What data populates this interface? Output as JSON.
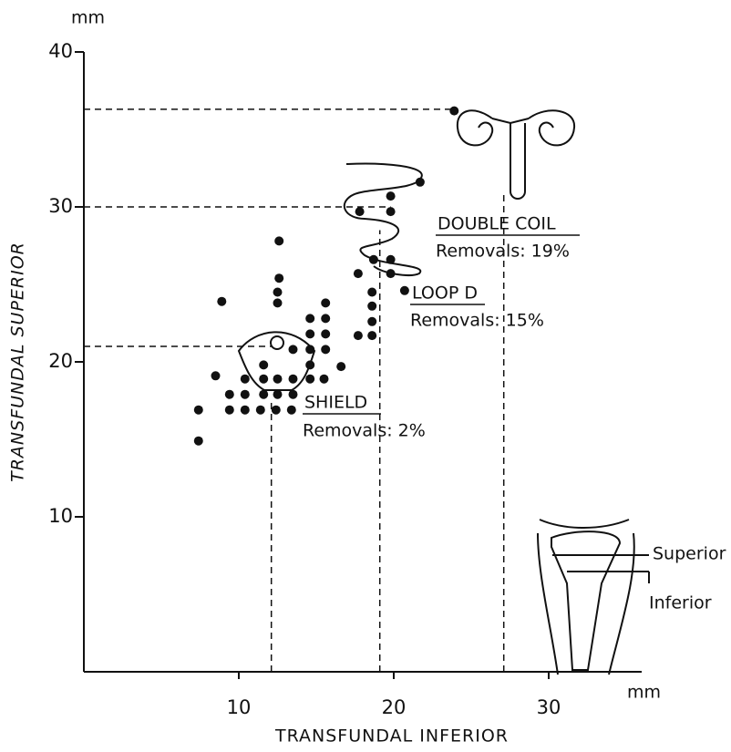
{
  "chart_data": {
    "type": "scatter",
    "x_label": "TRANSFUNDAL INFERIOR",
    "y_label": "TRANSFUNDAL SUPERIOR",
    "x_unit": "mm",
    "y_unit": "mm",
    "xlim": [
      0,
      36
    ],
    "ylim": [
      0,
      40
    ],
    "xticks": [
      10,
      20,
      30
    ],
    "yticks": [
      10,
      20,
      30,
      40
    ],
    "color": "#111111",
    "x": [
      23.9,
      21.7,
      19.8,
      17.8,
      19.8,
      17.7,
      18.7,
      19.8,
      19.8,
      18.6,
      20.7,
      18.6,
      18.6,
      17.7,
      18.6,
      12.6,
      12.6,
      12.5,
      12.5,
      8.9,
      14.6,
      15.6,
      14.6,
      15.6,
      15.6,
      14.6,
      15.6,
      16.6,
      14.6,
      14.6,
      15.5,
      8.5,
      9.4,
      10.4,
      11.6,
      11.6,
      12.5,
      13.5,
      13.5,
      11.6,
      12.5,
      13.5,
      10.4,
      9.4,
      10.4,
      11.4,
      12.4,
      13.4,
      7.4,
      7.4
    ],
    "values": [
      36.2,
      31.6,
      30.7,
      29.7,
      29.7,
      25.7,
      26.6,
      26.6,
      25.7,
      24.5,
      24.6,
      23.6,
      22.6,
      21.7,
      21.7,
      27.8,
      25.4,
      24.5,
      23.8,
      23.9,
      22.8,
      23.8,
      21.8,
      22.8,
      21.8,
      20.8,
      20.8,
      19.7,
      19.8,
      18.9,
      18.9,
      19.1,
      17.9,
      17.9,
      19.8,
      18.9,
      18.9,
      18.9,
      20.8,
      17.9,
      17.9,
      17.9,
      18.9,
      16.9,
      16.9,
      16.9,
      16.9,
      16.9,
      16.9,
      14.9
    ],
    "guides": [
      {
        "x": [
          0,
          23.9
        ],
        "y": [
          36.3,
          36.3
        ]
      },
      {
        "x": [
          0,
          19.8
        ],
        "y": [
          30,
          30
        ]
      },
      {
        "x": [
          0,
          12.1
        ],
        "y": [
          21,
          21
        ]
      },
      {
        "x": [
          12.1,
          12.1
        ],
        "y": [
          0,
          17.5
        ]
      },
      {
        "x": [
          19.1,
          19.1
        ],
        "y": [
          0,
          28.5
        ]
      },
      {
        "x": [
          27.1,
          27.1
        ],
        "y": [
          0,
          31
        ]
      }
    ],
    "annotations": [
      "DOUBLE COIL",
      "Removals: 19%",
      "LOOP D",
      "Removals: 15%",
      "SHIELD",
      "Removals: 2%",
      "Superior",
      "Inferior"
    ]
  }
}
